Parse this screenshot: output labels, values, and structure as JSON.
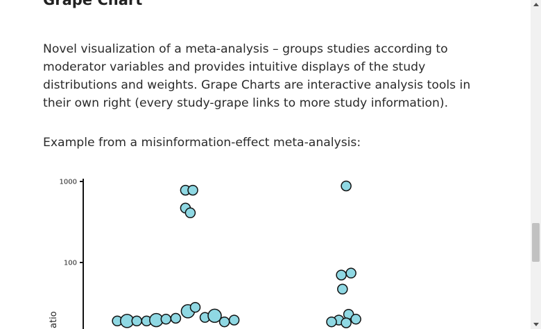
{
  "section": {
    "title": "Grape Chart",
    "description": "Novel visualization of a meta-analysis – groups studies according to moderator variables and provides intuitive displays of the study distributions and weights. Grape Charts are interactive analysis tools in their own right (every study-grape links to more study information).",
    "example_label": "Example from a misinformation-effect meta-analysis:"
  },
  "colors": {
    "grape_fill": "#8fd8e3",
    "grape_stroke": "#111111",
    "axis": "#111111"
  },
  "chart_data": {
    "type": "scatter",
    "scale": "log",
    "ylabel": "atio",
    "yticks": [
      {
        "value": 1000,
        "label": "1000"
      },
      {
        "value": 100,
        "label": "100"
      }
    ],
    "series": [
      {
        "points": [
          {
            "x": 1.34,
            "y": 780
          },
          {
            "x": 1.37,
            "y": 780
          },
          {
            "x": 1.34,
            "y": 470
          },
          {
            "x": 1.36,
            "y": 410
          },
          {
            "x": 1.06,
            "y": 19
          },
          {
            "x": 1.1,
            "y": 19
          },
          {
            "x": 1.14,
            "y": 19
          },
          {
            "x": 1.18,
            "y": 19
          },
          {
            "x": 1.22,
            "y": 19.5
          },
          {
            "x": 1.26,
            "y": 20
          },
          {
            "x": 1.3,
            "y": 20.5
          },
          {
            "x": 1.35,
            "y": 25
          },
          {
            "x": 1.38,
            "y": 28
          },
          {
            "x": 1.42,
            "y": 21
          },
          {
            "x": 1.46,
            "y": 22
          },
          {
            "x": 1.5,
            "y": 18.5
          },
          {
            "x": 1.54,
            "y": 19.5
          }
        ]
      },
      {
        "points": [
          {
            "x": 2.0,
            "y": 880
          },
          {
            "x": 1.98,
            "y": 70
          },
          {
            "x": 2.02,
            "y": 74
          },
          {
            "x": 1.985,
            "y": 47
          },
          {
            "x": 2.01,
            "y": 23
          },
          {
            "x": 1.97,
            "y": 19.5
          },
          {
            "x": 2.04,
            "y": 20
          },
          {
            "x": 1.94,
            "y": 18.5
          },
          {
            "x": 2.0,
            "y": 18
          }
        ]
      }
    ]
  }
}
